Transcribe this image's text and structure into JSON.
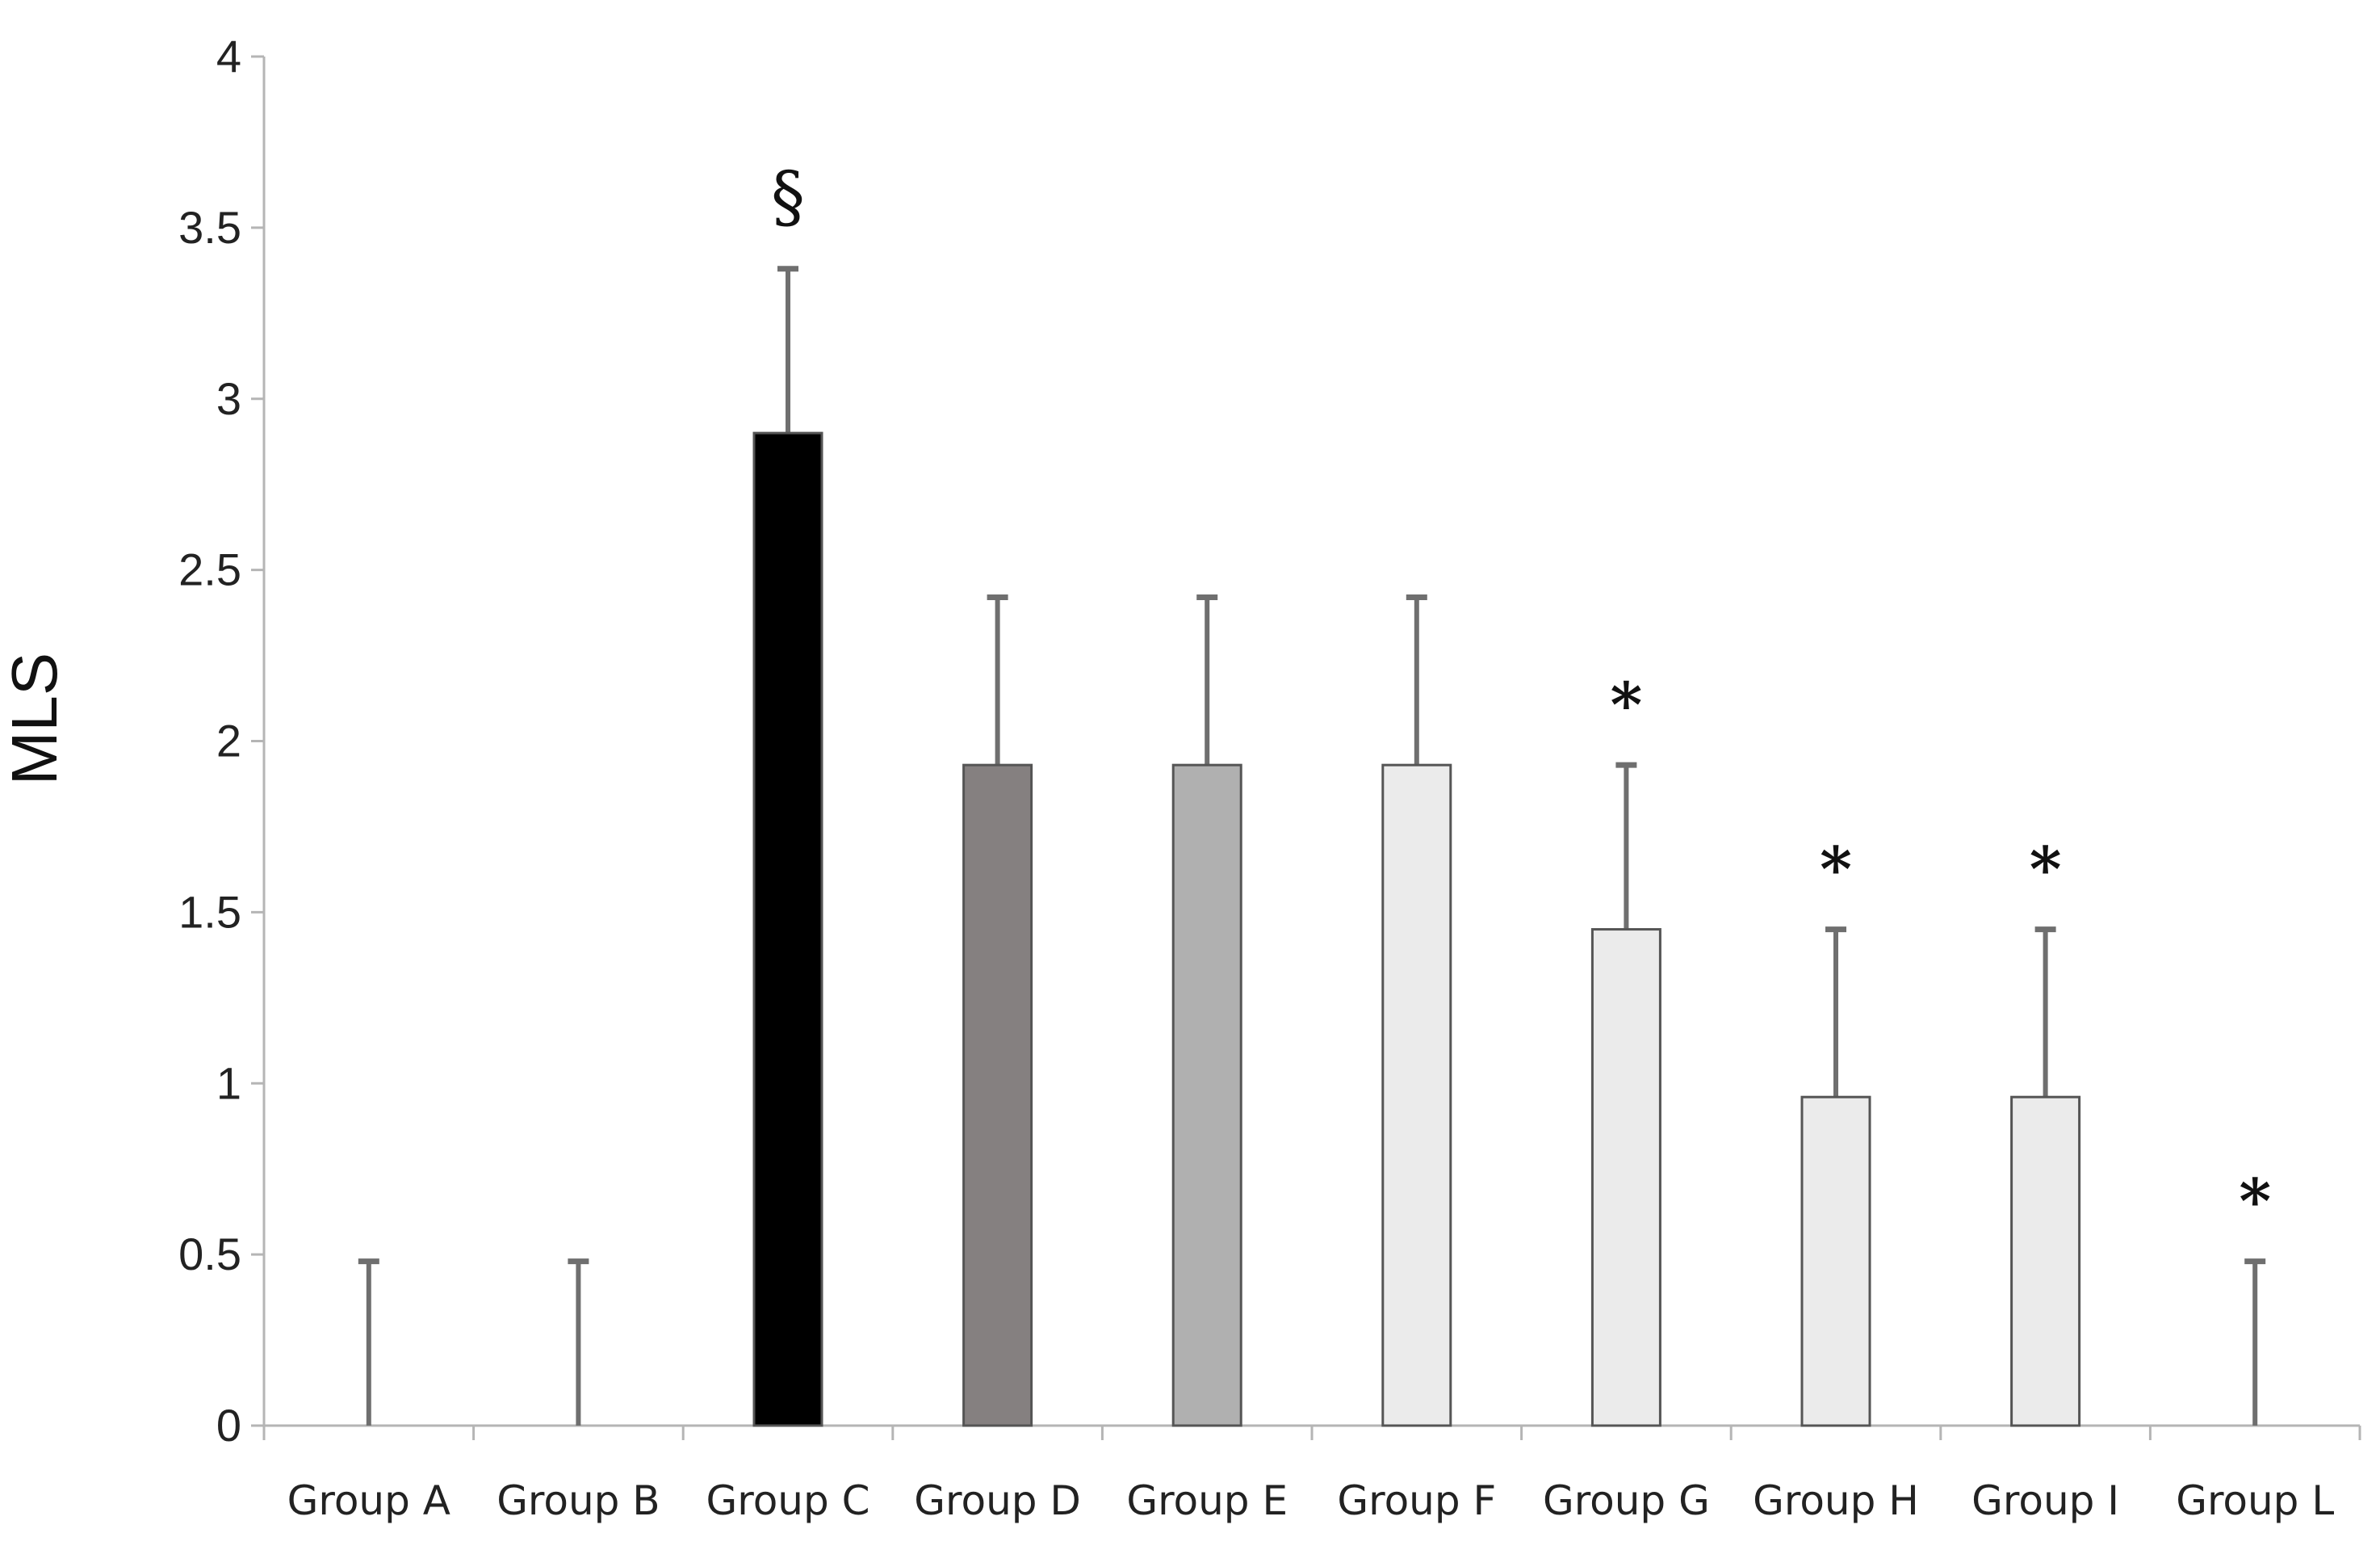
{
  "chart_data": {
    "type": "bar",
    "title": "",
    "xlabel": "",
    "ylabel": "MLS",
    "ylim": [
      0,
      4
    ],
    "yticks": [
      "0",
      "0.5",
      "1",
      "1.5",
      "2",
      "2.5",
      "3",
      "3.5",
      "4"
    ],
    "grid": false,
    "legend": "none",
    "categories": [
      "Group A",
      "Group B",
      "Group C",
      "Group D",
      "Group E",
      "Group F",
      "Group G",
      "Group H",
      "Group I",
      "Group L"
    ],
    "values": [
      0,
      0,
      2.9,
      1.93,
      1.93,
      1.93,
      1.45,
      0.96,
      0.96,
      0
    ],
    "error_upper": [
      0.48,
      0.48,
      3.38,
      2.42,
      2.42,
      2.42,
      1.93,
      1.45,
      1.45,
      0.48
    ],
    "annotations": [
      "",
      "",
      "§",
      "",
      "",
      "",
      "*",
      "*",
      "*",
      "*"
    ],
    "bar_colors": [
      "#e8e8e8",
      "#e8e8e8",
      "#000000",
      "#858080",
      "#b0b0b0",
      "#ebebeb",
      "#ebebeb",
      "#ebebeb",
      "#ebebeb",
      "#ebebeb"
    ],
    "colors": {
      "axis": "#b5b5b5",
      "bar_edge": "#555555",
      "error_bar": "#6f6f6f"
    }
  }
}
